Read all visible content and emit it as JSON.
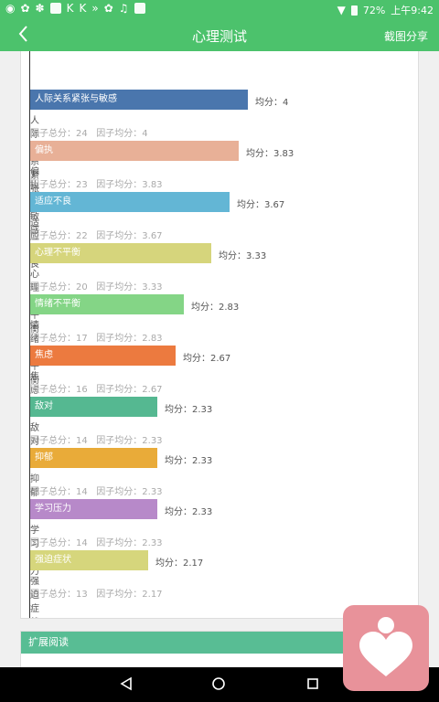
{
  "status": {
    "battery": "72%",
    "time": "上午9:42"
  },
  "header": {
    "back_icon": "back-chevron-icon",
    "title": "心理测试",
    "share_label": "截图分享"
  },
  "chart_data": {
    "type": "bar",
    "orientation": "horizontal",
    "xlim": [
      0,
      4
    ],
    "factors": [
      {
        "label": "人际关系紧张与敏感",
        "name": "人际关系紧张与敏感",
        "avg_text": "均分：4",
        "value": 4,
        "total": "因子总分：24",
        "mean": "因子均分：4",
        "color": "#4a76ad"
      },
      {
        "label": "偏执",
        "name": "偏执",
        "avg_text": "均分：3.83",
        "value": 3.83,
        "total": "因子总分：23",
        "mean": "因子均分：3.83",
        "color": "#e8b097"
      },
      {
        "label": "适应不良",
        "name": "适应不良",
        "avg_text": "均分：3.67",
        "value": 3.67,
        "total": "因子总分：22",
        "mean": "因子均分：3.67",
        "color": "#63b6d5"
      },
      {
        "label": "心理不平衡",
        "name": "心理不平衡",
        "avg_text": "均分：3.33",
        "value": 3.33,
        "total": "因子总分：20",
        "mean": "因子均分：3.33",
        "color": "#d6d57c"
      },
      {
        "label": "情绪不平衡",
        "name": "情绪不平衡",
        "avg_text": "均分：2.83",
        "value": 2.83,
        "total": "因子总分：17",
        "mean": "因子均分：2.83",
        "color": "#84d586"
      },
      {
        "label": "焦虑",
        "name": "焦虑",
        "avg_text": "均分：2.67",
        "value": 2.67,
        "total": "因子总分：16",
        "mean": "因子均分：2.67",
        "color": "#ec7a3f"
      },
      {
        "label": "敌对",
        "name": "敌对",
        "avg_text": "均分：2.33",
        "value": 2.33,
        "total": "因子总分：14",
        "mean": "因子均分：2.33",
        "color": "#55b891"
      },
      {
        "label": "抑郁",
        "name": "抑郁",
        "avg_text": "均分：2.33",
        "value": 2.33,
        "total": "因子总分：14",
        "mean": "因子均分：2.33",
        "color": "#e9ab39"
      },
      {
        "label": "学习压力",
        "name": "学习压力",
        "avg_text": "均分：2.33",
        "value": 2.33,
        "total": "因子总分：14",
        "mean": "因子均分：2.33",
        "color": "#b789c9"
      },
      {
        "label": "强迫症状",
        "name": "强迫症状",
        "avg_text": "均分：2.17",
        "value": 2.17,
        "total": "因子总分：13",
        "mean": "因子均分：2.17",
        "color": "#d6d67c"
      }
    ]
  },
  "extended": {
    "title": "扩展阅读"
  },
  "fab": {
    "icon": "heart-person-icon"
  },
  "navbar": {
    "back_icon": "nav-back-icon",
    "home_icon": "nav-home-icon",
    "recents_icon": "nav-recents-icon"
  }
}
